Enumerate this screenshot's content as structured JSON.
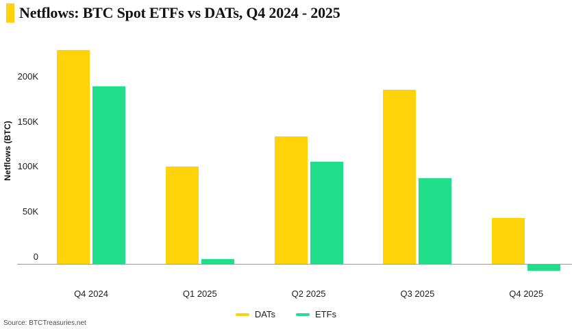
{
  "title": "Netflows: BTC Spot ETFs vs DATs, Q4 2024 - 2025",
  "source_note": "Source: BTCTreasuries.net",
  "colors": {
    "dats_yellow": "#FFD20A",
    "etfs_green": "#21DE8B",
    "axis_line": "#9a9a9a",
    "text": "#1c1c1c"
  },
  "chart_data": {
    "type": "bar",
    "title": "Netflows: BTC Spot ETFs vs DATs, Q4 2024 - 2025",
    "xlabel": "",
    "ylabel": "Netflows (BTC)",
    "values_unit": "thousand BTC",
    "categories": [
      "Q4 2024",
      "Q1 2025",
      "Q2 2025",
      "Q3 2025",
      "Q4 2025"
    ],
    "series": [
      {
        "name": "DATs",
        "color": "#FFD20A",
        "values": [
          237,
          108,
          141,
          193,
          51
        ]
      },
      {
        "name": "ETFs",
        "color": "#21DE8B",
        "values": [
          197,
          5,
          113,
          95,
          -7
        ]
      }
    ],
    "y_ticks": [
      {
        "value": 0,
        "label": "0"
      },
      {
        "value": 50,
        "label": "50K"
      },
      {
        "value": 100,
        "label": "100K"
      },
      {
        "value": 150,
        "label": "150K"
      },
      {
        "value": 200,
        "label": "200K"
      }
    ],
    "ylim": [
      -15,
      250
    ],
    "grid": "off",
    "legend_position": "bottom-center"
  },
  "legend": {
    "items": [
      {
        "label": "DATs"
      },
      {
        "label": "ETFs"
      }
    ]
  }
}
